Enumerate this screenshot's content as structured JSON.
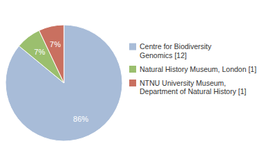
{
  "chart_data": {
    "type": "pie",
    "categories": [
      "Centre for Biodiversity\nGenomics [12]",
      "Natural History Museum, London [1]",
      "NTNU University Museum,\nDepartment of Natural History [1]"
    ],
    "values": [
      86,
      7,
      7
    ],
    "value_labels": [
      "86%",
      "7%",
      "7%"
    ],
    "colors": [
      "#a8bcd8",
      "#9bbf6e",
      "#c97060"
    ],
    "data_labels": true,
    "legend": "right"
  }
}
